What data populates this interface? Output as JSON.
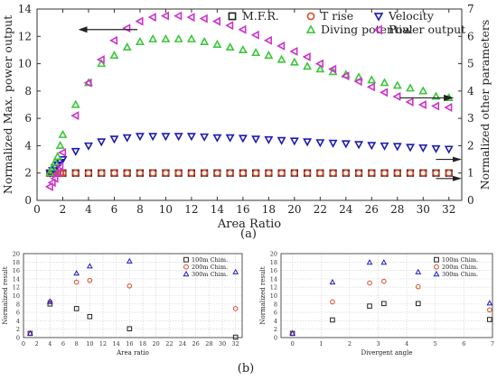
{
  "labels": {
    "a": "(a)",
    "b": "(b)"
  },
  "chart_data": [
    {
      "type": "scatter",
      "title": "",
      "xlabel": "Area Ratio",
      "ylabel_left": "Normalized Max. power output",
      "ylabel_right": "Normalized other parameters",
      "xlim": [
        0,
        33
      ],
      "ylim_left": [
        0,
        14
      ],
      "ylim_right": [
        0,
        7
      ],
      "xticks": [
        "0",
        "2",
        "4",
        "6",
        "8",
        "10",
        "12",
        "14",
        "16",
        "18",
        "20",
        "22",
        "24",
        "26",
        "28",
        "30",
        "32"
      ],
      "yticks_left": [
        "0",
        "2",
        "4",
        "6",
        "8",
        "10",
        "12",
        "14"
      ],
      "yticks_right": [
        "0",
        "1",
        "2",
        "3",
        "4",
        "5",
        "6",
        "7"
      ],
      "legend_placement": "top-right",
      "grid": false,
      "x": [
        1,
        1.2,
        1.4,
        1.6,
        1.8,
        2,
        3,
        4,
        5,
        6,
        7,
        8,
        9,
        10,
        11,
        12,
        13,
        14,
        15,
        16,
        17,
        18,
        19,
        20,
        21,
        22,
        23,
        24,
        25,
        26,
        27,
        28,
        29,
        30,
        31,
        32
      ],
      "series": [
        {
          "name": "M.F.R.",
          "axis": "right",
          "marker": "square",
          "color": "#222222",
          "values": [
            1.0,
            1.0,
            1.0,
            1.0,
            1.0,
            1.0,
            1.0,
            1.0,
            1.0,
            1.0,
            1.0,
            1.0,
            1.0,
            1.0,
            1.0,
            1.0,
            1.0,
            1.0,
            1.0,
            1.0,
            1.0,
            1.0,
            1.0,
            1.0,
            1.0,
            1.0,
            1.0,
            1.0,
            1.0,
            1.0,
            1.0,
            1.0,
            1.0,
            1.0,
            1.0,
            1.0
          ]
        },
        {
          "name": "T rise",
          "axis": "right",
          "marker": "circle",
          "color": "#d94a2b",
          "values": [
            1.0,
            1.0,
            1.0,
            1.0,
            1.0,
            1.0,
            1.0,
            1.0,
            1.0,
            1.0,
            1.0,
            1.0,
            1.0,
            1.0,
            1.0,
            1.0,
            1.0,
            1.0,
            1.0,
            1.0,
            1.0,
            1.0,
            1.0,
            1.0,
            1.0,
            1.0,
            1.0,
            1.0,
            1.0,
            1.0,
            1.0,
            1.0,
            1.0,
            1.0,
            1.0,
            1.0
          ]
        },
        {
          "name": "Velocity",
          "axis": "right",
          "marker": "triangle-down",
          "color": "#1c1cae",
          "values": [
            1.0,
            1.1,
            1.2,
            1.3,
            1.4,
            1.5,
            1.8,
            2.0,
            2.15,
            2.25,
            2.3,
            2.35,
            2.35,
            2.35,
            2.35,
            2.35,
            2.33,
            2.3,
            2.3,
            2.28,
            2.25,
            2.23,
            2.2,
            2.18,
            2.15,
            2.12,
            2.1,
            2.08,
            2.05,
            2.02,
            2.0,
            1.98,
            1.95,
            1.93,
            1.9,
            1.88
          ]
        },
        {
          "name": "Diving potential",
          "axis": "right",
          "marker": "triangle-up",
          "color": "#3cc63c",
          "values": [
            1.0,
            1.2,
            1.4,
            1.6,
            2.0,
            2.4,
            3.5,
            4.3,
            5.0,
            5.3,
            5.6,
            5.8,
            5.9,
            5.9,
            5.9,
            5.9,
            5.8,
            5.7,
            5.6,
            5.5,
            5.4,
            5.3,
            5.15,
            5.05,
            4.9,
            4.8,
            4.7,
            4.6,
            4.5,
            4.4,
            4.3,
            4.2,
            4.1,
            4.0,
            3.8,
            3.75
          ]
        },
        {
          "name": "Power output",
          "axis": "left",
          "marker": "triangle-left",
          "color": "#cc33cc",
          "values": [
            1.0,
            1.3,
            1.6,
            2.0,
            2.5,
            3.5,
            6.2,
            8.6,
            10.3,
            11.7,
            12.6,
            13.1,
            13.4,
            13.5,
            13.5,
            13.4,
            13.3,
            13.1,
            12.8,
            12.5,
            12.1,
            11.7,
            11.3,
            10.9,
            10.5,
            10.0,
            9.6,
            9.1,
            8.7,
            8.3,
            7.9,
            7.6,
            7.2,
            7.0,
            6.9,
            6.8
          ]
        }
      ],
      "annotations": [
        "arrow-left",
        "arrow-right"
      ]
    },
    {
      "type": "scatter",
      "title": "",
      "xlabel": "Area ratio",
      "ylabel": "Normalized result",
      "xlim": [
        0,
        33
      ],
      "ylim": [
        0,
        20
      ],
      "xticks": [
        "0",
        "2",
        "4",
        "6",
        "8",
        "10",
        "12",
        "14",
        "16",
        "18",
        "20",
        "22",
        "24",
        "26",
        "28",
        "30",
        "32"
      ],
      "yticks": [
        "0",
        "2",
        "4",
        "6",
        "8",
        "10",
        "12",
        "14",
        "16",
        "18",
        "20"
      ],
      "grid": true,
      "legend_placement": "top-right",
      "x": [
        1,
        4,
        8,
        10,
        16,
        32
      ],
      "series": [
        {
          "name": "100m Chim.",
          "marker": "square",
          "color": "#222222",
          "values": [
            1.0,
            8.0,
            6.9,
            5.0,
            2.1,
            0.1
          ]
        },
        {
          "name": "200m Chim.",
          "marker": "circle",
          "color": "#d94a2b",
          "values": [
            1.0,
            8.5,
            13.2,
            13.6,
            12.3,
            6.9
          ]
        },
        {
          "name": "300m Chim.",
          "marker": "triangle-up",
          "color": "#1c1cc0",
          "values": [
            1.0,
            8.6,
            15.3,
            17.0,
            18.2,
            15.6
          ]
        }
      ]
    },
    {
      "type": "scatter",
      "title": "",
      "xlabel": "Divergent  angle",
      "ylabel": "Normalized result",
      "xlim": [
        -0.4,
        7
      ],
      "ylim": [
        0,
        20
      ],
      "xticks": [
        "0",
        "1",
        "2",
        "3",
        "4",
        "5",
        "6",
        "7"
      ],
      "yticks": [
        "0",
        "2",
        "4",
        "6",
        "8",
        "10",
        "12",
        "14",
        "16",
        "18",
        "20"
      ],
      "grid": true,
      "legend_placement": "top-right",
      "x": [
        0,
        1.4,
        2.7,
        3.2,
        4.4,
        6.9
      ],
      "series": [
        {
          "name": "100m Chim.",
          "marker": "square",
          "color": "#222222",
          "values": [
            1.0,
            4.2,
            7.5,
            8.1,
            8.1,
            4.3
          ]
        },
        {
          "name": "200m Chim.",
          "marker": "circle",
          "color": "#d94a2b",
          "values": [
            1.0,
            8.5,
            13.0,
            13.4,
            12.1,
            6.6
          ]
        },
        {
          "name": "300m Chim.",
          "marker": "triangle-up",
          "color": "#1c1cc0",
          "values": [
            1.0,
            13.2,
            17.9,
            17.9,
            15.6,
            8.2
          ]
        }
      ]
    }
  ]
}
